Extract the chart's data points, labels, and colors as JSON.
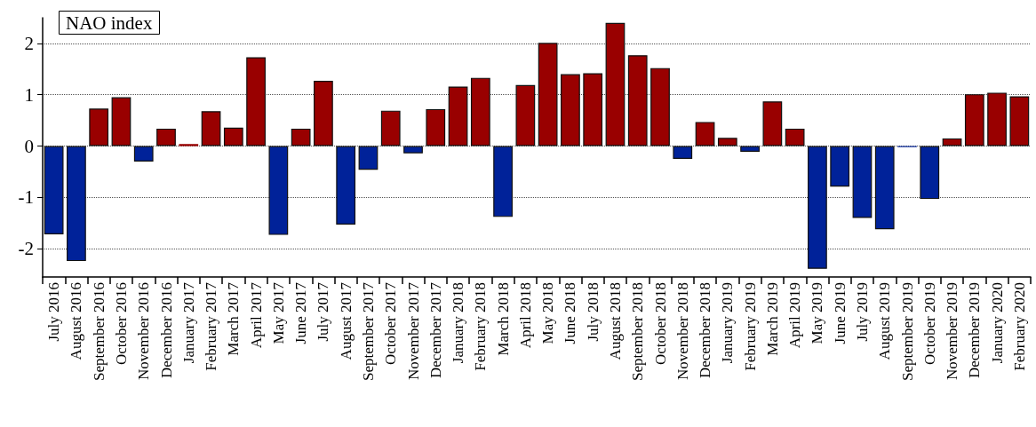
{
  "chart_data": {
    "type": "bar",
    "title": "NAO index",
    "categories": [
      "July 2016",
      "August 2016",
      "September 2016",
      "October 2016",
      "November 2016",
      "December 2016",
      "January 2017",
      "February 2017",
      "March 2017",
      "April 2017",
      "May 2017",
      "June 2017",
      "July 2017",
      "August 2017",
      "September 2017",
      "October 2017",
      "November 2017",
      "December 2017",
      "January 2018",
      "February 2018",
      "March 2018",
      "April 2018",
      "May 2018",
      "June 2018",
      "July 2018",
      "August 2018",
      "September 2018",
      "October 2018",
      "November 2018",
      "December 2018",
      "January 2019",
      "February 2019",
      "March 2019",
      "April 2019",
      "May 2019",
      "June 2019",
      "July 2019",
      "August 2019",
      "September 2019",
      "October 2019",
      "November 2019",
      "December 2019",
      "January 2020",
      "February 2020"
    ],
    "values": [
      -1.72,
      -2.24,
      0.73,
      0.95,
      -0.3,
      0.34,
      0.04,
      0.68,
      0.36,
      1.73,
      -1.73,
      0.34,
      1.27,
      -1.53,
      -0.46,
      0.69,
      -0.14,
      0.72,
      1.16,
      1.33,
      -1.38,
      1.19,
      2.01,
      1.4,
      1.42,
      2.4,
      1.77,
      1.52,
      -0.25,
      0.47,
      0.16,
      -0.11,
      0.87,
      0.34,
      -2.39,
      -0.79,
      -1.4,
      -1.62,
      -0.02,
      -1.03,
      0.15,
      1.01,
      1.04,
      0.97
    ],
    "colors": [
      "#002299",
      "#002299",
      "#990000",
      "#990000",
      "#002299",
      "#990000",
      "#990000",
      "#990000",
      "#990000",
      "#990000",
      "#002299",
      "#990000",
      "#990000",
      "#002299",
      "#002299",
      "#990000",
      "#002299",
      "#990000",
      "#990000",
      "#990000",
      "#002299",
      "#990000",
      "#990000",
      "#990000",
      "#990000",
      "#990000",
      "#990000",
      "#990000",
      "#002299",
      "#990000",
      "#990000",
      "#002299",
      "#990000",
      "#990000",
      "#002299",
      "#002299",
      "#002299",
      "#002299",
      "#002299",
      "#002299",
      "#990000",
      "#990000",
      "#990000",
      "#990000"
    ],
    "ylim": [
      -2.55,
      2.5
    ],
    "yticks": [
      -2,
      -1,
      0,
      1,
      2
    ],
    "grid": "y"
  }
}
